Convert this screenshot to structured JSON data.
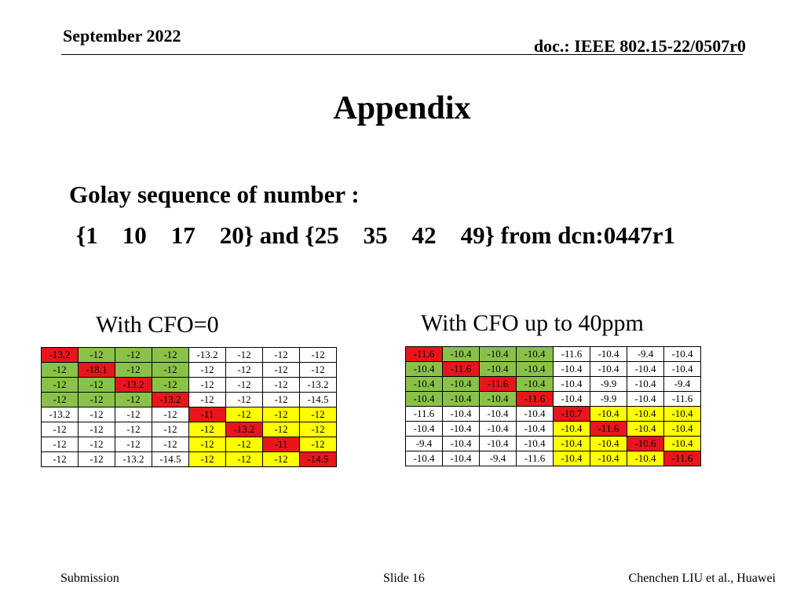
{
  "header": {
    "date": "September 2022",
    "doc": "doc.: IEEE 802.15-22/0507r0"
  },
  "title": "Appendix",
  "body": {
    "line1": "Golay sequence of number :",
    "line2": "{1    10    17    20} and {25    35    42    49} from dcn:0447r1"
  },
  "tables": {
    "left": {
      "caption": "With CFO=0",
      "rows": [
        [
          [
            "-13.2",
            "r"
          ],
          [
            "-12",
            "g"
          ],
          [
            "-12",
            "g"
          ],
          [
            "-12",
            "g"
          ],
          [
            "-13.2",
            "w"
          ],
          [
            "-12",
            "w"
          ],
          [
            "-12",
            "w"
          ],
          [
            "-12",
            "w"
          ]
        ],
        [
          [
            "-12",
            "g"
          ],
          [
            "-18.1",
            "r"
          ],
          [
            "-12",
            "g"
          ],
          [
            "-12",
            "g"
          ],
          [
            "-12",
            "w"
          ],
          [
            "-12",
            "w"
          ],
          [
            "-12",
            "w"
          ],
          [
            "-12",
            "w"
          ]
        ],
        [
          [
            "-12",
            "g"
          ],
          [
            "-12",
            "g"
          ],
          [
            "-13.2",
            "r"
          ],
          [
            "-12",
            "g"
          ],
          [
            "-12",
            "w"
          ],
          [
            "-12",
            "w"
          ],
          [
            "-12",
            "w"
          ],
          [
            "-13.2",
            "w"
          ]
        ],
        [
          [
            "-12",
            "g"
          ],
          [
            "-12",
            "g"
          ],
          [
            "-12",
            "g"
          ],
          [
            "-13.2",
            "r"
          ],
          [
            "-12",
            "w"
          ],
          [
            "-12",
            "w"
          ],
          [
            "-12",
            "w"
          ],
          [
            "-14.5",
            "w"
          ]
        ],
        [
          [
            "-13.2",
            "w"
          ],
          [
            "-12",
            "w"
          ],
          [
            "-12",
            "w"
          ],
          [
            "-12",
            "w"
          ],
          [
            "-11",
            "r"
          ],
          [
            "-12",
            "y"
          ],
          [
            "-12",
            "y"
          ],
          [
            "-12",
            "y"
          ]
        ],
        [
          [
            "-12",
            "w"
          ],
          [
            "-12",
            "w"
          ],
          [
            "-12",
            "w"
          ],
          [
            "-12",
            "w"
          ],
          [
            "-12",
            "y"
          ],
          [
            "-13.2",
            "r"
          ],
          [
            "-12",
            "y"
          ],
          [
            "-12",
            "y"
          ]
        ],
        [
          [
            "-12",
            "w"
          ],
          [
            "-12",
            "w"
          ],
          [
            "-12",
            "w"
          ],
          [
            "-12",
            "w"
          ],
          [
            "-12",
            "y"
          ],
          [
            "-12",
            "y"
          ],
          [
            "-11",
            "r"
          ],
          [
            "-12",
            "y"
          ]
        ],
        [
          [
            "-12",
            "w"
          ],
          [
            "-12",
            "w"
          ],
          [
            "-13.2",
            "w"
          ],
          [
            "-14.5",
            "w"
          ],
          [
            "-12",
            "y"
          ],
          [
            "-12",
            "y"
          ],
          [
            "-12",
            "y"
          ],
          [
            "-14.5",
            "r"
          ]
        ]
      ]
    },
    "right": {
      "caption": "With CFO up to 40ppm",
      "rows": [
        [
          [
            "-11.6",
            "r"
          ],
          [
            "-10.4",
            "g"
          ],
          [
            "-10.4",
            "g"
          ],
          [
            "-10.4",
            "g"
          ],
          [
            "-11.6",
            "w"
          ],
          [
            "-10.4",
            "w"
          ],
          [
            "-9.4",
            "w"
          ],
          [
            "-10.4",
            "w"
          ]
        ],
        [
          [
            "-10.4",
            "g"
          ],
          [
            "-11.6",
            "r"
          ],
          [
            "-10.4",
            "g"
          ],
          [
            "-10.4",
            "g"
          ],
          [
            "-10.4",
            "w"
          ],
          [
            "-10.4",
            "w"
          ],
          [
            "-10.4",
            "w"
          ],
          [
            "-10.4",
            "w"
          ]
        ],
        [
          [
            "-10.4",
            "g"
          ],
          [
            "-10.4",
            "g"
          ],
          [
            "-11.6",
            "r"
          ],
          [
            "-10.4",
            "g"
          ],
          [
            "-10.4",
            "w"
          ],
          [
            "-9.9",
            "w"
          ],
          [
            "-10.4",
            "w"
          ],
          [
            "-9.4",
            "w"
          ]
        ],
        [
          [
            "-10.4",
            "g"
          ],
          [
            "-10.4",
            "g"
          ],
          [
            "-10.4",
            "g"
          ],
          [
            "-11.6",
            "r"
          ],
          [
            "-10.4",
            "w"
          ],
          [
            "-9.9",
            "w"
          ],
          [
            "-10.4",
            "w"
          ],
          [
            "-11.6",
            "w"
          ]
        ],
        [
          [
            "-11.6",
            "w"
          ],
          [
            "-10.4",
            "w"
          ],
          [
            "-10.4",
            "w"
          ],
          [
            "-10.4",
            "w"
          ],
          [
            "-10.7",
            "r"
          ],
          [
            "-10.4",
            "y"
          ],
          [
            "-10.4",
            "y"
          ],
          [
            "-10.4",
            "y"
          ]
        ],
        [
          [
            "-10.4",
            "w"
          ],
          [
            "-10.4",
            "w"
          ],
          [
            "-10.4",
            "w"
          ],
          [
            "-10.4",
            "w"
          ],
          [
            "-10.4",
            "y"
          ],
          [
            "-11.6",
            "r"
          ],
          [
            "-10.4",
            "y"
          ],
          [
            "-10.4",
            "y"
          ]
        ],
        [
          [
            "-9.4",
            "w"
          ],
          [
            "-10.4",
            "w"
          ],
          [
            "-10.4",
            "w"
          ],
          [
            "-10.4",
            "w"
          ],
          [
            "-10.4",
            "y"
          ],
          [
            "-10.4",
            "y"
          ],
          [
            "-10.6",
            "r"
          ],
          [
            "-10.4",
            "y"
          ]
        ],
        [
          [
            "-10.4",
            "w"
          ],
          [
            "-10.4",
            "w"
          ],
          [
            "-9.4",
            "w"
          ],
          [
            "-11.6",
            "w"
          ],
          [
            "-10.4",
            "y"
          ],
          [
            "-10.4",
            "y"
          ],
          [
            "-10.4",
            "y"
          ],
          [
            "-11.6",
            "r"
          ]
        ]
      ]
    }
  },
  "colors": {
    "r": "#e8161b",
    "g": "#8ac249",
    "y": "#ffff00",
    "w": "#ffffff"
  },
  "footer": {
    "left": "Submission",
    "center": "Slide 16",
    "right": "Chenchen LIU et al., Huawei"
  }
}
